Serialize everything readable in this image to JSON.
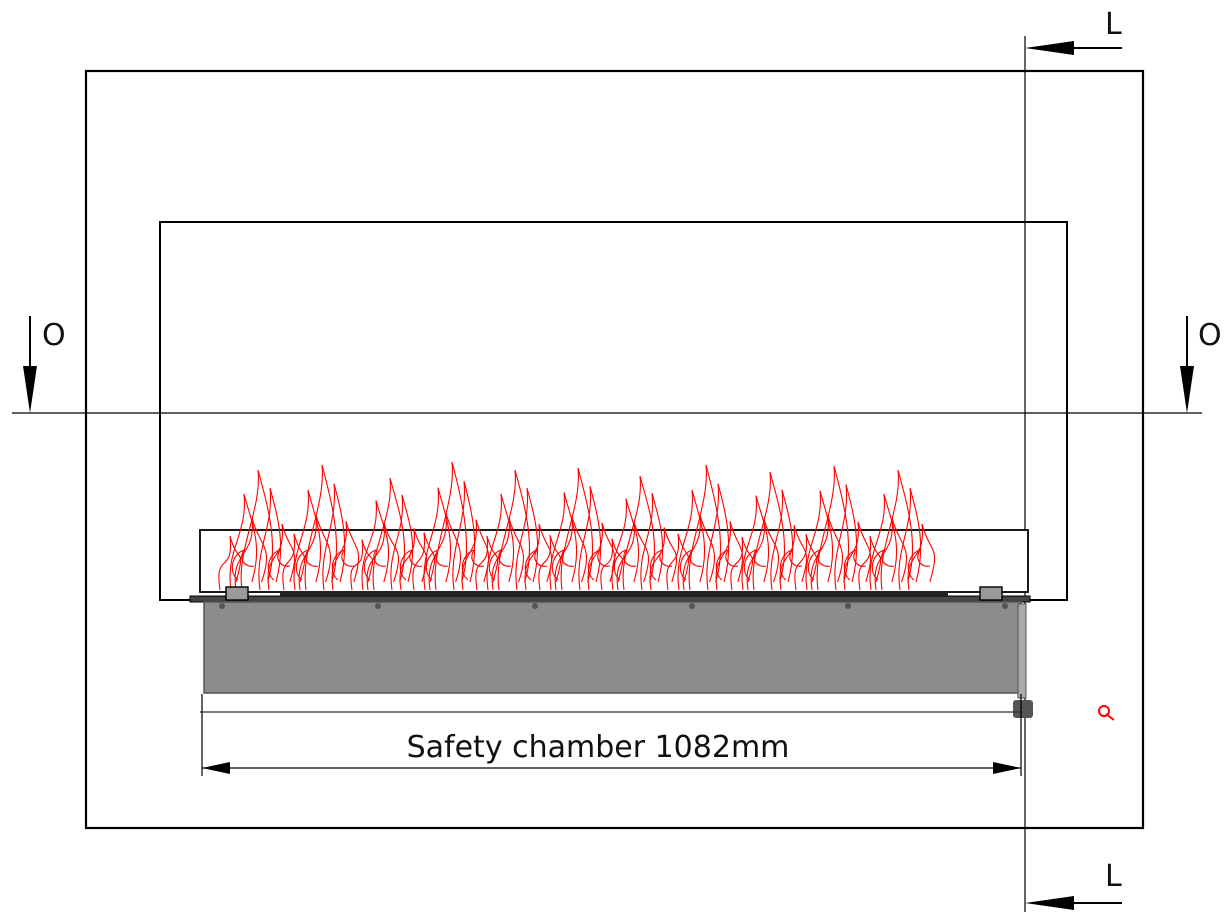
{
  "section_labels": {
    "horizontal_left": "O",
    "horizontal_right": "O",
    "vertical_top": "L",
    "vertical_bottom": "L"
  },
  "dimension": {
    "label": "Safety chamber 1082mm"
  },
  "colors": {
    "lines": "#000000",
    "flames": "#ff0000",
    "burner_body": "#8c8c8c",
    "burner_body_edge": "#555555",
    "glass_panel": "#ffffff"
  }
}
